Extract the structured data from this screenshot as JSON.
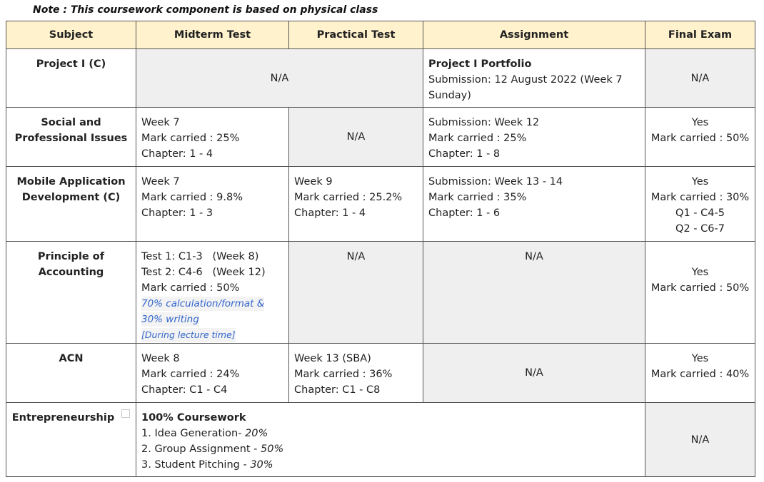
{
  "note": "Note : This coursework component is based on physical class",
  "headers": [
    "Subject",
    "Midterm Test",
    "Practical Test",
    "Assignment",
    "Final Exam"
  ],
  "rows": {
    "project": {
      "subject": "Project I (C)",
      "midterm_practical": "N/A",
      "assignment_title": "Project I Portfolio",
      "assignment_line1": "Submission: 12 August 2022 (Week 7",
      "assignment_line2": "Sunday)",
      "final": "N/A"
    },
    "social": {
      "subject_line1": "Social and",
      "subject_line2": "Professional Issues",
      "midterm": [
        "Week 7",
        "Mark carried : 25%",
        "Chapter: 1 - 4"
      ],
      "practical": "N/A",
      "assignment": [
        "Submission: Week 12",
        "Mark carried : 25%",
        "Chapter: 1 - 8"
      ],
      "final": [
        "Yes",
        "Mark carried : 50%"
      ]
    },
    "mobile": {
      "subject_line1": "Mobile Application",
      "subject_line2": "Development (C)",
      "midterm": [
        "Week 7",
        "Mark carried : 9.8%",
        "Chapter: 1 - 3"
      ],
      "practical": [
        "Week 9",
        "Mark carried : 25.2%",
        "Chapter: 1 - 4"
      ],
      "assignment": [
        "Submission: Week 13 - 14",
        "Mark carried : 35%",
        "Chapter: 1 - 6"
      ],
      "final": [
        "Yes",
        "Mark carried : 30%",
        "Q1 - C4-5",
        "Q2 - C6-7"
      ]
    },
    "accounting": {
      "subject_line1": "Principle of",
      "subject_line2": "Accounting",
      "midterm": [
        "Test 1: C1-3   (Week 8)",
        "Test 2: C4-6   (Week 12)",
        "Mark carried : 50%"
      ],
      "midterm_note1": "70% calculation/format &",
      "midterm_note2": "30% writing",
      "midterm_note3": "[During lecture time]",
      "practical": "N/A",
      "assignment": "N/A",
      "final": [
        "Yes",
        "Mark carried : 50%"
      ]
    },
    "acn": {
      "subject": "ACN",
      "midterm": [
        "Week 8",
        "Mark carried : 24%",
        "Chapter: C1 - C4"
      ],
      "practical": [
        "Week 13 (SBA)",
        "Mark carried : 36%",
        "Chapter: C1 - C8"
      ],
      "assignment": "N/A",
      "final": [
        "Yes",
        "Mark carried : 40%"
      ]
    },
    "entrepreneurship": {
      "subject": "Entrepreneurship",
      "title": "100% Coursework",
      "items": [
        {
          "label": "1. Idea Generation- ",
          "pct": "20%"
        },
        {
          "label": "2. Group Assignment - ",
          "pct": "50%"
        },
        {
          "label": "3. Student Pitching - ",
          "pct": "30%"
        }
      ],
      "final": "N/A"
    }
  }
}
